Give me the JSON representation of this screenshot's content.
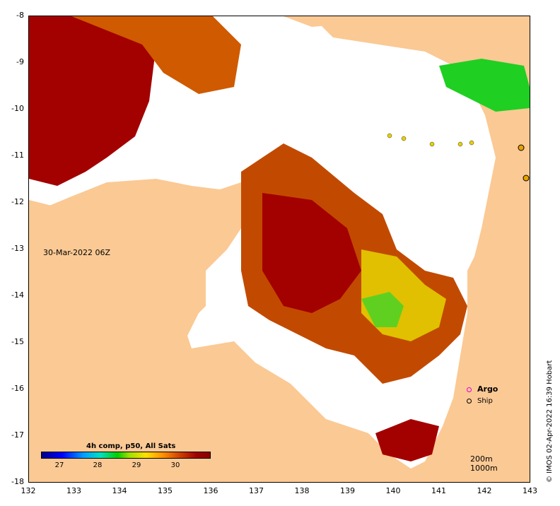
{
  "map": {
    "date_label": "30-Mar-2022 06Z",
    "x_ticks": [
      "132",
      "133",
      "134",
      "135",
      "136",
      "137",
      "138",
      "139",
      "140",
      "141",
      "142",
      "143"
    ],
    "y_ticks": [
      "-8",
      "-9",
      "-10",
      "-11",
      "-12",
      "-13",
      "-14",
      "-15",
      "-16",
      "-17",
      "-18"
    ],
    "colorbar": {
      "title": "4h comp, p50, All Sats",
      "ticks": [
        "27",
        "28",
        "29",
        "30"
      ]
    },
    "legend": {
      "argo": "Argo",
      "ship": "Ship"
    },
    "depth_labels": [
      "200m",
      "1000m"
    ],
    "credit": "© IMOS 02-Apr-2022 16:39 Hobart",
    "colors": {
      "land": "#fbc994",
      "no_data": "#ffffff",
      "hot": "#a30000",
      "warm": "#d56a00",
      "mid": "#e8a300",
      "cool": "#b7dc1a",
      "green": "#1fcf22"
    }
  }
}
